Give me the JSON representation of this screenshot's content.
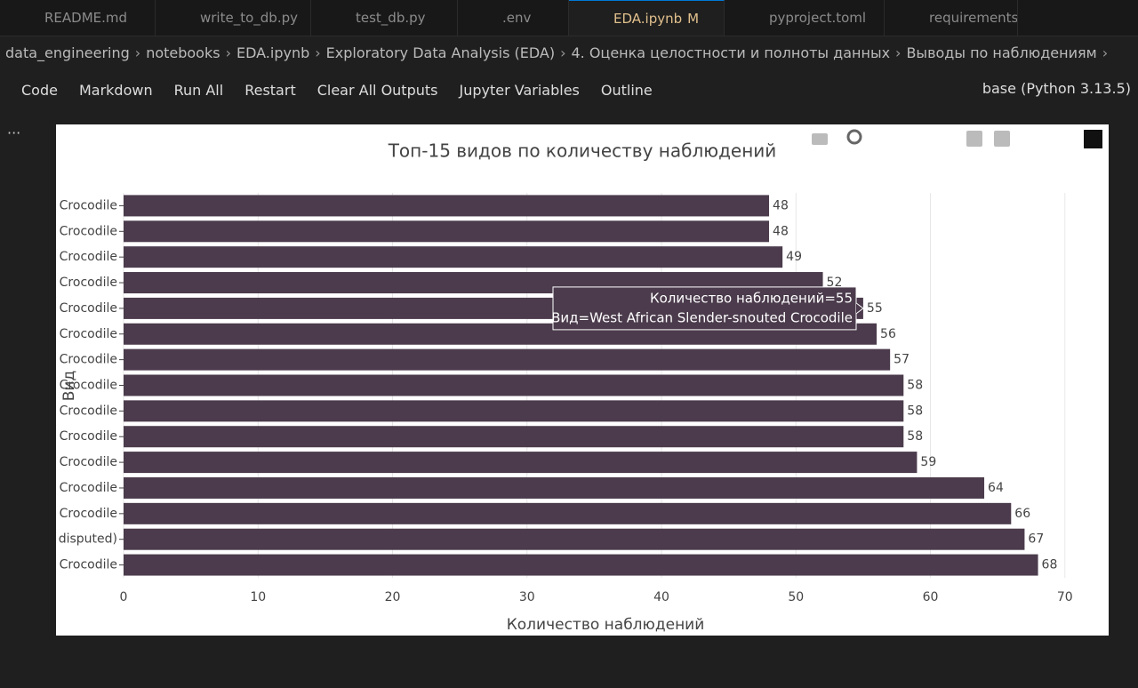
{
  "tabs": [
    "README.md",
    "write_to_db.py",
    "test_db.py",
    ".env",
    "EDA.ipynb",
    "pyproject.toml",
    "requirements.t"
  ],
  "active_tab_badge": "M",
  "breadcrumbs": [
    "data_engineering",
    "notebooks",
    "EDA.ipynb",
    "Exploratory Data Analysis (EDA)",
    "4. Оценка целостности и полноты данных",
    "Выводы по наблюдениям"
  ],
  "toolbar": [
    "Code",
    "Markdown",
    "Run All",
    "Restart",
    "Clear All Outputs",
    "Jupyter Variables",
    "Outline"
  ],
  "kernel": "base (Python 3.13.5)",
  "chart_data": {
    "type": "bar",
    "orientation": "horizontal",
    "title": "Топ-15 видов по количеству наблюдений",
    "x_label": "Количество наблюдений",
    "y_label": "Вид",
    "categories": [
      "Crocodile",
      "Crocodile",
      "Crocodile",
      "Crocodile",
      "Crocodile",
      "Crocodile",
      "Crocodile",
      "Crocodile",
      "Crocodile",
      "Crocodile",
      "Crocodile",
      "Crocodile",
      "Crocodile",
      "disputed)",
      "Crocodile"
    ],
    "values": [
      48,
      48,
      49,
      52,
      55,
      56,
      57,
      58,
      58,
      58,
      59,
      64,
      66,
      67,
      68
    ],
    "color": "#4b3b4c",
    "xlim": [
      0,
      71.6
    ],
    "xticks": [
      0,
      10,
      20,
      30,
      40,
      50,
      60,
      70
    ],
    "grid": true,
    "tooltip": [
      "Количество наблюдений=55",
      "Вид=West African Slender-snouted Crocodile"
    ]
  }
}
